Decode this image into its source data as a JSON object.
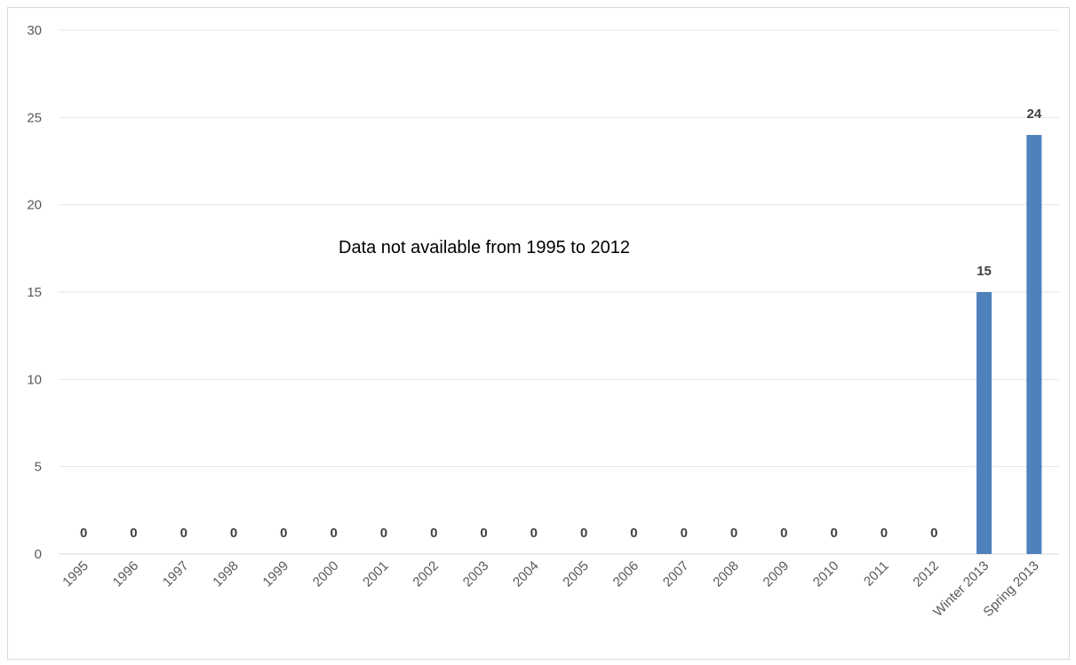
{
  "chart_data": {
    "type": "bar",
    "title": "",
    "xlabel": "",
    "ylabel": "",
    "categories": [
      "1995",
      "1996",
      "1997",
      "1998",
      "1999",
      "2000",
      "2001",
      "2002",
      "2003",
      "2004",
      "2005",
      "2006",
      "2007",
      "2008",
      "2009",
      "2010",
      "2011",
      "2012",
      "Winter 2013",
      "Spring 2013"
    ],
    "values": [
      0,
      0,
      0,
      0,
      0,
      0,
      0,
      0,
      0,
      0,
      0,
      0,
      0,
      0,
      0,
      0,
      0,
      0,
      15,
      24
    ],
    "data_labels": [
      "0",
      "0",
      "0",
      "0",
      "0",
      "0",
      "0",
      "0",
      "0",
      "0",
      "0",
      "0",
      "0",
      "0",
      "0",
      "0",
      "0",
      "0",
      "15",
      "24"
    ],
    "ylim": [
      0,
      30
    ],
    "yticks": [
      0,
      5,
      10,
      15,
      20,
      25,
      30
    ],
    "grid": "horizontal",
    "legend": "none",
    "bar_color": "#4f81bd",
    "annotation": "Data not available from 1995 to 2012"
  }
}
